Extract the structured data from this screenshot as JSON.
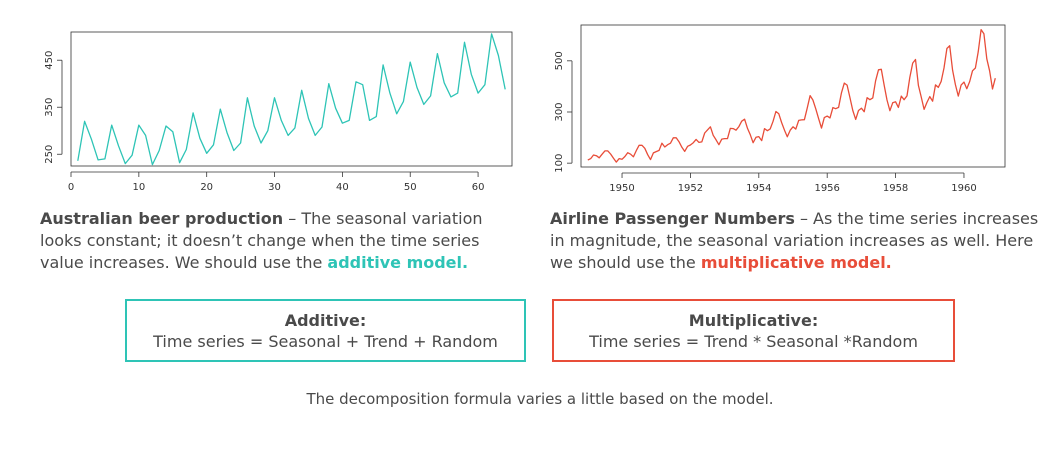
{
  "colors": {
    "additive": "#2ec4b6",
    "multiplicative": "#e84d39",
    "text": "#4a4a4a",
    "axis": "#333333"
  },
  "chart_data": [
    {
      "type": "line",
      "xlim": [
        0,
        65
      ],
      "ylim": [
        225,
        510
      ],
      "xticks": [
        0,
        10,
        20,
        30,
        40,
        50,
        60
      ],
      "yticks": [
        250,
        350,
        450
      ],
      "grid": false,
      "series": [
        {
          "color": "#2ec4b6",
          "x": [
            1,
            2,
            3,
            4,
            5,
            6,
            7,
            8,
            9,
            10,
            11,
            12,
            13,
            14,
            15,
            16,
            17,
            18,
            19,
            20,
            21,
            22,
            23,
            24,
            25,
            26,
            27,
            28,
            29,
            30,
            31,
            32,
            33,
            34,
            35,
            36,
            37,
            38,
            39,
            40,
            41,
            42,
            43,
            44,
            45,
            46,
            47,
            48,
            49,
            50,
            51,
            52,
            53,
            54,
            55,
            56,
            57,
            58,
            59,
            60,
            61,
            62,
            63,
            64
          ],
          "values": [
            236,
            320,
            282,
            238,
            240,
            312,
            268,
            230,
            248,
            312,
            290,
            228,
            258,
            310,
            298,
            232,
            260,
            338,
            284,
            252,
            270,
            346,
            296,
            258,
            274,
            370,
            310,
            274,
            300,
            370,
            322,
            290,
            306,
            386,
            326,
            290,
            308,
            400,
            348,
            316,
            322,
            404,
            398,
            322,
            330,
            440,
            380,
            336,
            362,
            446,
            392,
            356,
            374,
            464,
            402,
            372,
            380,
            488,
            420,
            380,
            398,
            506,
            460,
            388
          ]
        }
      ]
    },
    {
      "type": "line",
      "xlim": [
        1948.8,
        1961.2
      ],
      "ylim": [
        85,
        640
      ],
      "xticks": [
        1950,
        1952,
        1954,
        1956,
        1958,
        1960
      ],
      "yticks": [
        100,
        300,
        500
      ],
      "grid": false,
      "series": [
        {
          "color": "#e84d39",
          "x_start": 1949.0,
          "x_step": 0.0833333,
          "values": [
            112,
            118,
            132,
            129,
            121,
            135,
            148,
            148,
            136,
            119,
            104,
            118,
            115,
            126,
            141,
            135,
            125,
            149,
            170,
            170,
            158,
            133,
            114,
            140,
            145,
            150,
            178,
            163,
            172,
            178,
            199,
            199,
            184,
            162,
            146,
            166,
            171,
            180,
            193,
            181,
            183,
            218,
            230,
            242,
            209,
            191,
            172,
            194,
            196,
            196,
            236,
            235,
            229,
            243,
            264,
            272,
            237,
            211,
            180,
            201,
            204,
            188,
            235,
            227,
            234,
            264,
            302,
            293,
            259,
            229,
            203,
            229,
            242,
            233,
            267,
            269,
            270,
            315,
            364,
            347,
            312,
            274,
            237,
            278,
            284,
            277,
            317,
            313,
            318,
            374,
            413,
            405,
            355,
            306,
            271,
            306,
            315,
            301,
            356,
            348,
            355,
            422,
            465,
            467,
            404,
            347,
            305,
            336,
            340,
            318,
            362,
            348,
            363,
            435,
            491,
            505,
            404,
            359,
            310,
            337,
            360,
            342,
            406,
            396,
            420,
            472,
            548,
            559,
            463,
            407,
            362,
            405,
            417,
            391,
            419,
            461,
            472,
            535,
            622,
            606,
            508,
            461,
            390,
            432
          ]
        }
      ]
    }
  ],
  "captions": {
    "left": {
      "title": "Australian beer production",
      "body": " – The seasonal variation looks constant; it doesn’t change when the time series value increases. We should use the ",
      "highlight": "additive model."
    },
    "right": {
      "title": "Airline Passenger Numbers",
      "body": " – As the time series increases in magnitude, the seasonal variation increases as well. Here we should use the ",
      "highlight": "multiplicative model."
    }
  },
  "boxes": {
    "additive": {
      "title": "Additive:",
      "formula": "Time series = Seasonal + Trend + Random"
    },
    "multiplicative": {
      "title": "Multiplicative:",
      "formula": "Time series = Trend * Seasonal *Random"
    }
  },
  "footer": {
    "note": "The decomposition formula varies a little based on the model."
  }
}
